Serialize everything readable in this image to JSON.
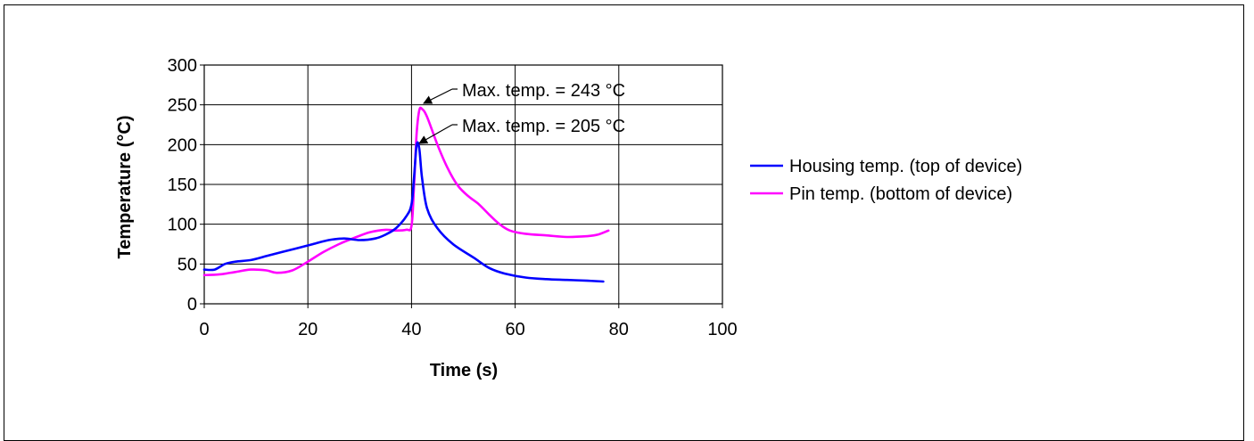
{
  "chart_data": {
    "type": "line",
    "title": "",
    "xlabel": "Time (s)",
    "ylabel": "Temperature (°C)",
    "xlim": [
      0,
      100
    ],
    "ylim": [
      0,
      300
    ],
    "x_ticks": [
      "0",
      "20",
      "40",
      "60",
      "80",
      "100"
    ],
    "y_ticks": [
      "0",
      "50",
      "100",
      "150",
      "200",
      "250",
      "300"
    ],
    "grid": true,
    "legend_position": "right",
    "series": [
      {
        "name": "Housing temp. (top of device)",
        "color": "#0000ff",
        "x": [
          0,
          2,
          4,
          6,
          9,
          12,
          15,
          18,
          21,
          24,
          27,
          30,
          33,
          35,
          37,
          39,
          40,
          40.5,
          41,
          41.5,
          42,
          43,
          45,
          48,
          52,
          55,
          58,
          62,
          66,
          70,
          74,
          77
        ],
        "y": [
          43,
          43,
          50,
          53,
          55,
          60,
          65,
          70,
          75,
          80,
          82,
          80,
          82,
          87,
          95,
          110,
          125,
          160,
          200,
          195,
          160,
          120,
          95,
          75,
          58,
          45,
          38,
          33,
          31,
          30,
          29,
          28
        ]
      },
      {
        "name": "Pin temp. (bottom of device)",
        "color": "#ff00ff",
        "x": [
          0,
          3,
          6,
          9,
          12,
          14,
          17,
          20,
          23,
          26,
          29,
          32,
          35,
          37,
          39,
          40,
          40.5,
          41,
          41.5,
          42,
          43,
          45,
          47,
          49,
          51,
          53,
          55,
          57,
          59,
          62,
          66,
          70,
          74,
          76,
          78
        ],
        "y": [
          36,
          37,
          40,
          43,
          42,
          39,
          42,
          53,
          65,
          75,
          83,
          90,
          93,
          92,
          93,
          98,
          150,
          215,
          243,
          245,
          235,
          200,
          170,
          148,
          135,
          125,
          112,
          100,
          92,
          88,
          86,
          84,
          85,
          87,
          92
        ]
      }
    ],
    "annotations": [
      {
        "text": "Max. temp. = 243 °C",
        "x": 42,
        "y": 245
      },
      {
        "text": "Max. temp. = 205 °C",
        "x": 41,
        "y": 200
      }
    ]
  }
}
